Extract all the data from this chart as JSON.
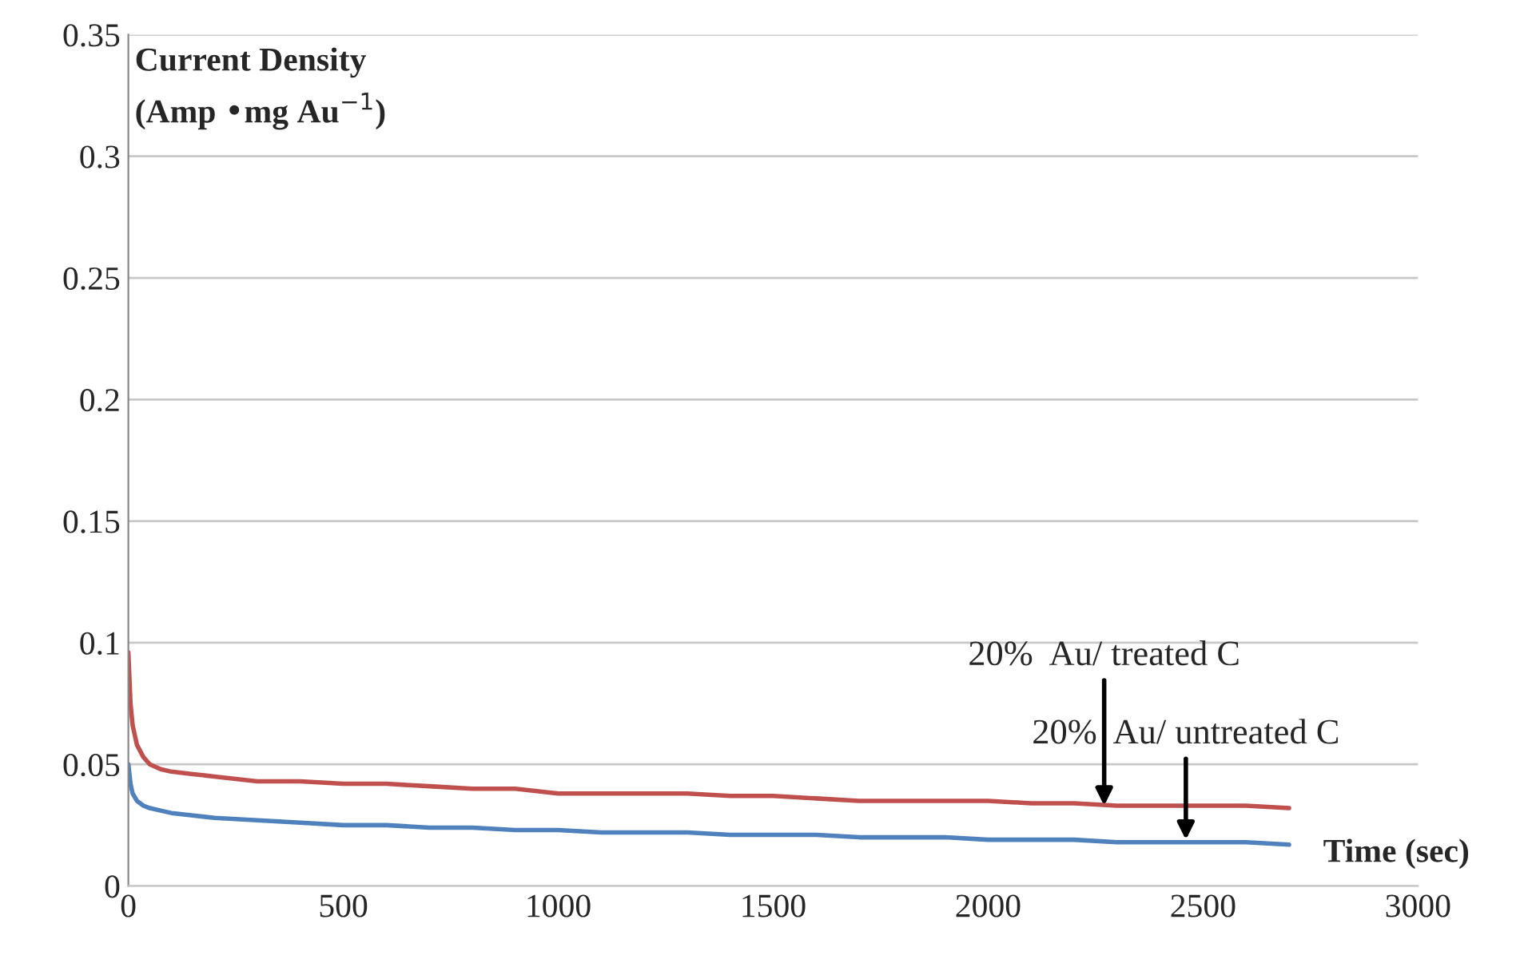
{
  "chart_data": {
    "type": "line",
    "ylabel": "Current Density\n(Amp •mg Au$^{−1}$)",
    "xlabel": "Time (sec)",
    "x": [
      0,
      5,
      10,
      20,
      35,
      50,
      75,
      100,
      150,
      200,
      300,
      400,
      500,
      600,
      700,
      800,
      900,
      1000,
      1100,
      1200,
      1300,
      1400,
      1500,
      1600,
      1700,
      1800,
      1900,
      2000,
      2100,
      2200,
      2300,
      2400,
      2500,
      2600,
      2700
    ],
    "series": [
      {
        "color": "#c0504d",
        "values": [
          0.096,
          0.075,
          0.066,
          0.058,
          0.053,
          0.05,
          0.048,
          0.047,
          0.046,
          0.045,
          0.043,
          0.043,
          0.042,
          0.042,
          0.041,
          0.04,
          0.04,
          0.038,
          0.038,
          0.038,
          0.038,
          0.037,
          0.037,
          0.036,
          0.035,
          0.035,
          0.035,
          0.035,
          0.034,
          0.034,
          0.033,
          0.033,
          0.033,
          0.033,
          0.032
        ]
      },
      {
        "color": "#4f81bd",
        "values": [
          0.05,
          0.042,
          0.038,
          0.035,
          0.033,
          0.032,
          0.031,
          0.03,
          0.029,
          0.028,
          0.027,
          0.026,
          0.025,
          0.025,
          0.024,
          0.024,
          0.023,
          0.023,
          0.022,
          0.022,
          0.022,
          0.021,
          0.021,
          0.021,
          0.02,
          0.02,
          0.02,
          0.019,
          0.019,
          0.019,
          0.018,
          0.018,
          0.018,
          0.018,
          0.017
        ]
      }
    ],
    "annotations": [
      {
        "text": "20%  Au/ treated C",
        "x": 2270,
        "y": 0.033
      },
      {
        "text": "20%  Au/ untreated C",
        "x": 2460,
        "y": 0.019
      }
    ],
    "xlim": [
      0,
      3000
    ],
    "xticks": [
      0,
      500,
      1000,
      1500,
      2000,
      2500,
      3000
    ],
    "ylim": [
      0,
      0.35
    ],
    "yticks": [
      0,
      0.05,
      0.1,
      0.15,
      0.2,
      0.25,
      0.3,
      0.35
    ],
    "grid": "y",
    "legend": false,
    "marker": "none",
    "line_style": "solid"
  }
}
